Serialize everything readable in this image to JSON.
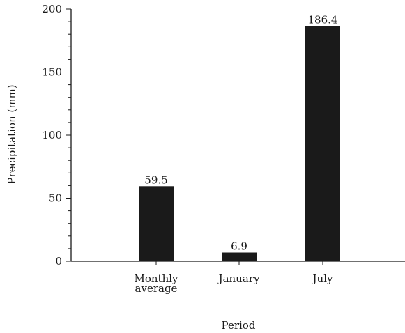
{
  "chart_data": {
    "type": "bar",
    "categories": [
      [
        "Monthly",
        "average"
      ],
      [
        "January"
      ],
      [
        "July"
      ]
    ],
    "values": [
      59.5,
      6.9,
      186.4
    ],
    "value_labels": [
      "59.5",
      "6.9",
      "186.4"
    ],
    "title": "",
    "xlabel": "Period",
    "ylabel": "Precipitation (mm)",
    "ylim": [
      0,
      200
    ],
    "yticks": [
      0,
      50,
      100,
      150,
      200
    ],
    "y_minor_step": 10,
    "grid": false,
    "bar_color": "#1a1a1a"
  }
}
